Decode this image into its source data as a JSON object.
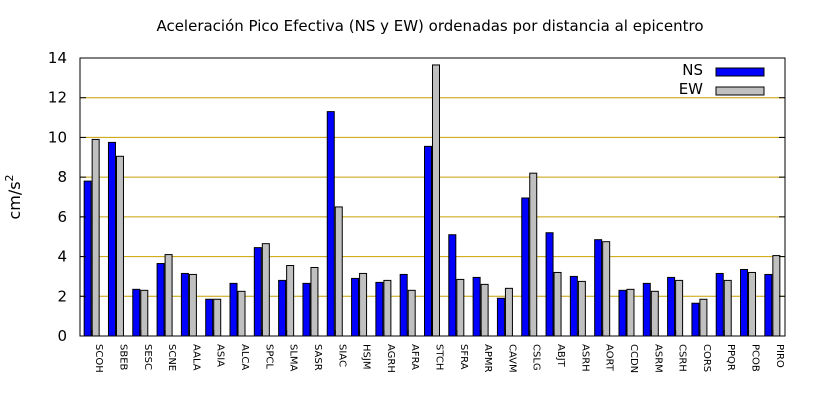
{
  "chart_data": {
    "type": "bar",
    "title": "Aceleración Pico Efectiva (NS y EW) ordenadas por distancia al epicentro",
    "xlabel": "",
    "ylabel": "cm/s",
    "ylabel_superscript": "2",
    "ylim": [
      0,
      14
    ],
    "yticks": [
      "0",
      "2",
      "4",
      "6",
      "8",
      "10",
      "12",
      "14"
    ],
    "grid": "horizontal",
    "legend_position": "top-right",
    "categories": [
      "SCOH",
      "SBEB",
      "SESC",
      "SCNE",
      "AALA",
      "ASIA",
      "ALCA",
      "SPCL",
      "SLMA",
      "SASR",
      "SIAC",
      "HSJM",
      "AGRH",
      "AFRA",
      "STCH",
      "SFRA",
      "APMR",
      "CAVM",
      "CSLG",
      "ABJT",
      "ASRH",
      "AORT",
      "CCDN",
      "ASRM",
      "CSRH",
      "CORS",
      "PPQR",
      "PCOB",
      "PIRO"
    ],
    "series": [
      {
        "name": "NS",
        "color": "#0000ff",
        "values": [
          7.8,
          9.75,
          2.35,
          3.65,
          3.15,
          1.85,
          2.65,
          4.45,
          2.8,
          2.65,
          11.3,
          2.9,
          2.7,
          3.1,
          9.55,
          5.1,
          2.95,
          1.9,
          6.95,
          5.2,
          3.0,
          4.85,
          2.3,
          2.65,
          2.95,
          1.65,
          3.15,
          3.35,
          3.1
        ]
      },
      {
        "name": "EW",
        "color": "#c0c0c0",
        "values": [
          9.9,
          9.05,
          2.3,
          4.1,
          3.1,
          1.85,
          2.25,
          4.65,
          3.55,
          3.45,
          6.5,
          3.15,
          2.8,
          2.3,
          13.65,
          2.85,
          2.6,
          2.4,
          8.2,
          3.2,
          2.75,
          4.75,
          2.35,
          2.25,
          2.8,
          1.85,
          2.8,
          3.2,
          4.05
        ]
      }
    ]
  }
}
